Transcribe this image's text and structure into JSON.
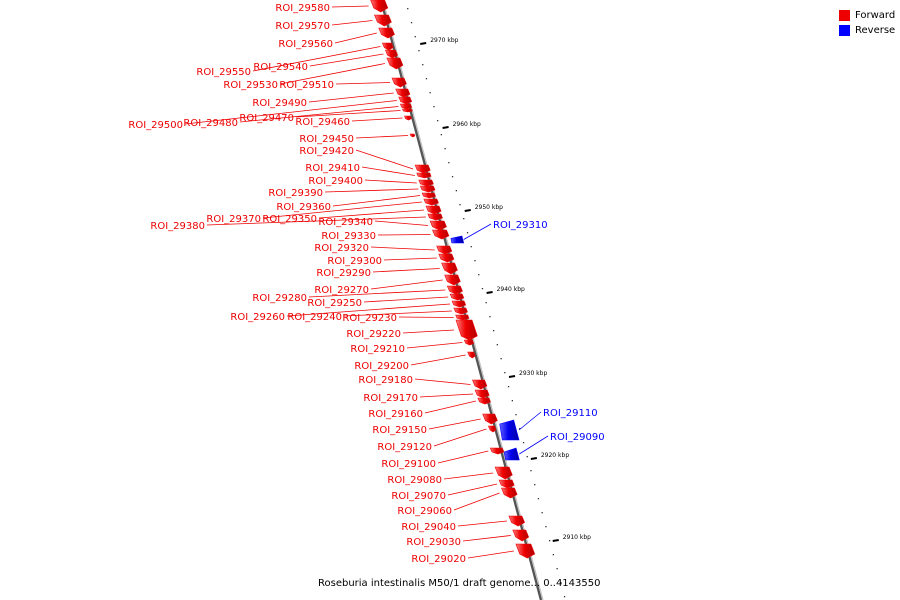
{
  "legend": {
    "forward_label": "Forward",
    "reverse_label": "Reverse",
    "forward_color": "#ee0000",
    "reverse_color": "#0000ff"
  },
  "caption": "Roseburia intestinalis M50/1 draft genome... 0..4143550",
  "ticks": [
    {
      "label": "2970 kbp"
    },
    {
      "label": "2960 kbp"
    },
    {
      "label": "2950 kbp"
    },
    {
      "label": "2940 kbp"
    },
    {
      "label": "2930 kbp"
    },
    {
      "label": "2920 kbp"
    },
    {
      "label": "2910 kbp"
    }
  ],
  "features": [
    {
      "label": "ROI_29580",
      "strand": "forward"
    },
    {
      "label": "ROI_29570",
      "strand": "forward"
    },
    {
      "label": "ROI_29560",
      "strand": "forward"
    },
    {
      "label": "ROI_29550",
      "strand": "forward"
    },
    {
      "label": "ROI_29540",
      "strand": "forward"
    },
    {
      "label": "ROI_29530",
      "strand": "forward"
    },
    {
      "label": "ROI_29510",
      "strand": "forward"
    },
    {
      "label": "ROI_29490",
      "strand": "forward"
    },
    {
      "label": "ROI_29500",
      "strand": "forward"
    },
    {
      "label": "ROI_29480",
      "strand": "forward"
    },
    {
      "label": "ROI_29470",
      "strand": "forward"
    },
    {
      "label": "ROI_29460",
      "strand": "forward"
    },
    {
      "label": "ROI_29450",
      "strand": "forward"
    },
    {
      "label": "ROI_29420",
      "strand": "forward"
    },
    {
      "label": "ROI_29410",
      "strand": "forward"
    },
    {
      "label": "ROI_29400",
      "strand": "forward"
    },
    {
      "label": "ROI_29390",
      "strand": "forward"
    },
    {
      "label": "ROI_29360",
      "strand": "forward"
    },
    {
      "label": "ROI_29370",
      "strand": "forward"
    },
    {
      "label": "ROI_29350",
      "strand": "forward"
    },
    {
      "label": "ROI_29380",
      "strand": "forward"
    },
    {
      "label": "ROI_29340",
      "strand": "forward"
    },
    {
      "label": "ROI_29330",
      "strand": "forward"
    },
    {
      "label": "ROI_29310",
      "strand": "reverse"
    },
    {
      "label": "ROI_29320",
      "strand": "forward"
    },
    {
      "label": "ROI_29300",
      "strand": "forward"
    },
    {
      "label": "ROI_29290",
      "strand": "forward"
    },
    {
      "label": "ROI_29270",
      "strand": "forward"
    },
    {
      "label": "ROI_29280",
      "strand": "forward"
    },
    {
      "label": "ROI_29250",
      "strand": "forward"
    },
    {
      "label": "ROI_29260",
      "strand": "forward"
    },
    {
      "label": "ROI_29240",
      "strand": "forward"
    },
    {
      "label": "ROI_29230",
      "strand": "forward"
    },
    {
      "label": "ROI_29220",
      "strand": "forward"
    },
    {
      "label": "ROI_29210",
      "strand": "forward"
    },
    {
      "label": "ROI_29200",
      "strand": "forward"
    },
    {
      "label": "ROI_29180",
      "strand": "forward"
    },
    {
      "label": "ROI_29170",
      "strand": "forward"
    },
    {
      "label": "ROI_29160",
      "strand": "forward"
    },
    {
      "label": "ROI_29150",
      "strand": "forward"
    },
    {
      "label": "ROI_29110",
      "strand": "reverse"
    },
    {
      "label": "ROI_29120",
      "strand": "forward"
    },
    {
      "label": "ROI_29090",
      "strand": "reverse"
    },
    {
      "label": "ROI_29100",
      "strand": "forward"
    },
    {
      "label": "ROI_29080",
      "strand": "forward"
    },
    {
      "label": "ROI_29070",
      "strand": "forward"
    },
    {
      "label": "ROI_29060",
      "strand": "forward"
    },
    {
      "label": "ROI_29040",
      "strand": "forward"
    },
    {
      "label": "ROI_29030",
      "strand": "forward"
    },
    {
      "label": "ROI_29020",
      "strand": "forward"
    }
  ]
}
